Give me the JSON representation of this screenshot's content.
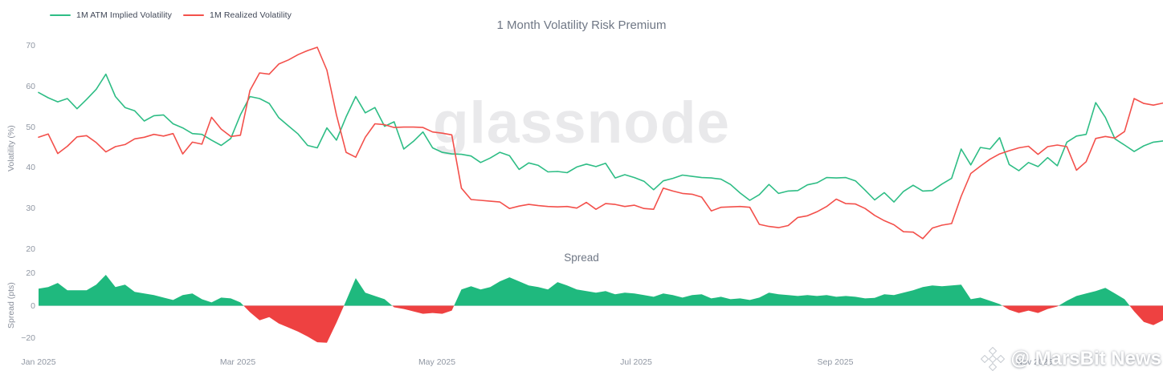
{
  "header": {
    "title": "1 Month Volatility Risk Premium",
    "legend": [
      {
        "label": "1M ATM Implied Volatility",
        "color": "#2ebd85"
      },
      {
        "label": "1M Realized Volatility",
        "color": "#f3504b"
      }
    ]
  },
  "watermark": {
    "text": "glassnode"
  },
  "attribution": {
    "text": "@ MarsBit News",
    "logo": "diamond-logo"
  },
  "chart_data": [
    {
      "type": "line",
      "title": "1 Month Volatility Risk Premium",
      "xlabel": "",
      "ylabel": "Volatility (%)",
      "ylim": [
        17,
        72
      ],
      "y_ticks": [
        70,
        60,
        50,
        40,
        30,
        20
      ],
      "x_tick_labels": [
        "Jan 2025",
        "Mar 2025",
        "May 2025",
        "Jul 2025",
        "Sep 2025",
        "Nov 2025"
      ],
      "grid": false,
      "legend_position": "top-left",
      "series": [
        {
          "name": "1M ATM Implied Volatility",
          "color": "#2ebd85",
          "values": [
            58.5,
            57.2,
            56.2,
            57,
            54.5,
            56.8,
            59.3,
            63,
            57.5,
            54.8,
            54,
            51.5,
            52.8,
            53,
            50.8,
            49.8,
            48.4,
            48.2,
            46.8,
            45.5,
            47.2,
            53,
            57.5,
            57,
            55.8,
            52.3,
            50.3,
            48.3,
            45.5,
            44.9,
            49.8,
            46.8,
            52.5,
            57.5,
            53.5,
            54.8,
            50.2,
            51.3,
            44.6,
            46.5,
            48.8,
            44.9,
            43.8,
            43.4,
            43.3,
            42.9,
            41.3,
            42.4,
            43.8,
            43,
            39.6,
            41.2,
            40.6,
            39,
            39.1,
            38.8,
            40.2,
            40.9,
            40.3,
            41.1,
            37.5,
            38.3,
            37.6,
            36.7,
            34.6,
            36.8,
            37.4,
            38.2,
            37.9,
            37.6,
            37.5,
            37.2,
            35.9,
            33.8,
            32,
            33.4,
            35.9,
            33.7,
            34.3,
            34.4,
            35.8,
            36.3,
            37.6,
            37.5,
            37.6,
            36.8,
            34.5,
            32.1,
            33.9,
            31.6,
            34.2,
            35.7,
            34.3,
            34.4,
            36,
            37.4,
            44.6,
            40.7,
            45,
            44.6,
            47.4,
            40.8,
            39.3,
            41.3,
            40.3,
            42.5,
            40.5,
            46.3,
            47.8,
            48.2,
            56,
            52.4,
            47.1,
            45.6,
            44,
            45.4,
            46.3,
            46.6
          ]
        },
        {
          "name": "1M Realized Volatility",
          "color": "#f3504b",
          "values": [
            47.5,
            48.3,
            43.5,
            45.3,
            47.6,
            47.9,
            46.2,
            43.9,
            45.2,
            45.7,
            47.1,
            47.5,
            48.2,
            47.8,
            48.4,
            43.4,
            46.3,
            45.8,
            52.4,
            49.5,
            47.7,
            48,
            59,
            63.3,
            63,
            65.5,
            66.5,
            67.8,
            68.8,
            69.6,
            64,
            53,
            43.8,
            42.6,
            47.5,
            50.8,
            50.6,
            49.9,
            50,
            50,
            49.9,
            48.8,
            48.5,
            48.1,
            35,
            32.2,
            32,
            31.8,
            31.6,
            30,
            30.6,
            31,
            30.7,
            30.5,
            30.4,
            30.5,
            30.1,
            31.5,
            29.8,
            31.2,
            31,
            30.5,
            30.8,
            30,
            29.8,
            35,
            34.3,
            33.7,
            33.5,
            32.8,
            29.4,
            30.3,
            30.4,
            30.5,
            30.3,
            26.1,
            25.6,
            25.3,
            25.8,
            27.8,
            28.2,
            29.2,
            30.5,
            32.3,
            31.2,
            31.1,
            30,
            28.3,
            27,
            26,
            24.3,
            24.2,
            22.6,
            25.2,
            25.9,
            26.3,
            33,
            38.6,
            40.4,
            42.1,
            43.4,
            44.2,
            44.9,
            45.3,
            43.3,
            45.2,
            45.6,
            45.2,
            39.4,
            41.5,
            47.2,
            47.7,
            47.3,
            48.9,
            57,
            55.8,
            55.4,
            55.9
          ]
        }
      ]
    },
    {
      "type": "area",
      "title": "Spread",
      "xlabel": "",
      "ylabel": "Spread (pts)",
      "ylim": [
        -25,
        22
      ],
      "y_ticks": [
        20,
        0,
        -20
      ],
      "grid": false,
      "positive_color": "#1fb97e",
      "negative_color": "#ee4141",
      "baseline": 0,
      "values": [
        10.5,
        11.5,
        14,
        9.5,
        9.5,
        9.5,
        13,
        19,
        11.5,
        13,
        8.5,
        7.5,
        6.5,
        5,
        3.5,
        6.5,
        7.5,
        4,
        2,
        5,
        4.5,
        2,
        -4,
        -9,
        -7,
        -11,
        -13.5,
        -16,
        -19,
        -22.5,
        -22.8,
        -10.5,
        3,
        17,
        8,
        6,
        4,
        -1,
        -2,
        -3.5,
        -5,
        -4.5,
        -5,
        -3,
        10,
        12,
        10,
        11.5,
        15,
        17.5,
        15,
        12.5,
        11.5,
        10,
        14.5,
        12.5,
        10,
        9,
        8,
        9,
        7,
        8,
        7.5,
        6.5,
        5.5,
        7.5,
        6.5,
        5,
        6.5,
        7,
        4.5,
        5.5,
        4,
        4.5,
        3.5,
        5,
        8,
        7,
        6.5,
        6,
        6.5,
        6,
        6.5,
        5.5,
        6,
        5.5,
        4.5,
        4.8,
        7,
        6.5,
        8,
        9.5,
        11.5,
        12.5,
        12,
        12.5,
        13,
        4,
        5,
        3,
        1,
        -2.5,
        -4.5,
        -3,
        -4.5,
        -2,
        -0.5,
        3,
        6,
        7.5,
        9,
        11,
        7.5,
        4,
        -3.5,
        -10,
        -12,
        -9
      ]
    }
  ]
}
